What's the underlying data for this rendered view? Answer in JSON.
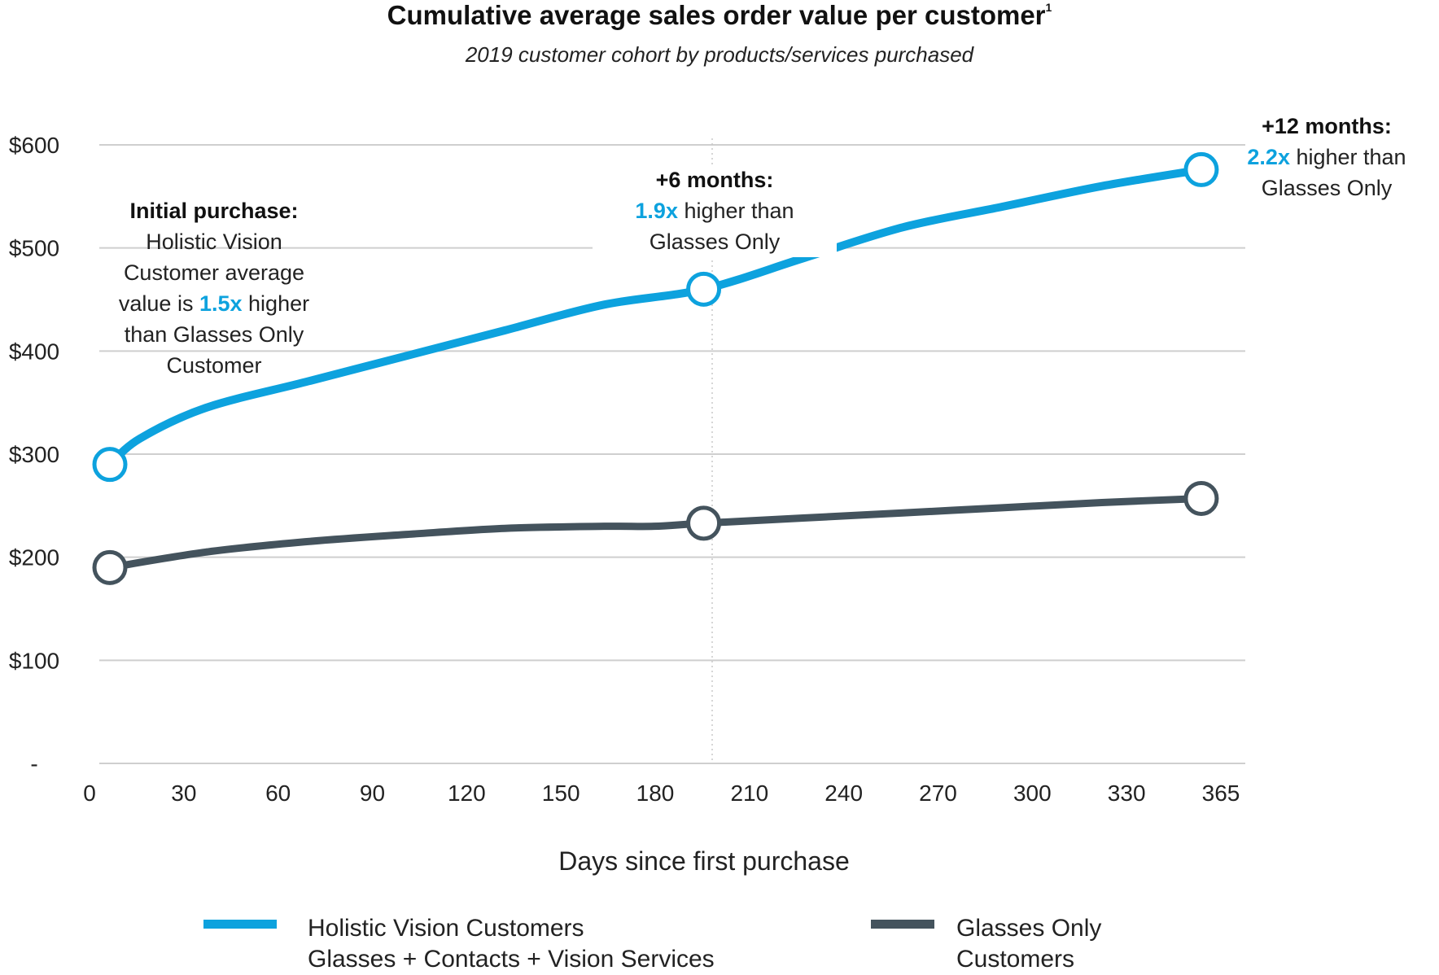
{
  "chart_data": {
    "type": "line",
    "title": "Cumulative average sales order value per customer",
    "title_footnote": "1",
    "subtitle": "2019 customer cohort by products/services purchased",
    "xlabel": "Days since first purchase",
    "ylabel": "",
    "x_ticks": [
      "0",
      "30",
      "60",
      "90",
      "120",
      "150",
      "180",
      "210",
      "240",
      "270",
      "300",
      "330",
      "365"
    ],
    "y_ticks": [
      "-",
      "$100",
      "$200",
      "$300",
      "$400",
      "$500",
      "$600"
    ],
    "ylim": [
      0,
      600
    ],
    "grid": "horizontal",
    "legend_position": "bottom",
    "series": [
      {
        "name": "Holistic Vision Customers",
        "name_line2": "Glasses + Contacts + Vision Services",
        "color": "#0da2de",
        "points": [
          [
            1,
            290
          ],
          [
            10,
            315
          ],
          [
            30,
            345
          ],
          [
            60,
            370
          ],
          [
            90,
            395
          ],
          [
            120,
            420
          ],
          [
            150,
            445
          ],
          [
            180,
            460
          ],
          [
            210,
            490
          ],
          [
            240,
            520
          ],
          [
            270,
            540
          ],
          [
            300,
            560
          ],
          [
            330,
            576
          ]
        ],
        "markers": [
          [
            1,
            290
          ],
          [
            180,
            460
          ],
          [
            330,
            576
          ]
        ]
      },
      {
        "name": "Glasses Only",
        "name_line2": "Customers",
        "color": "#44535d",
        "points": [
          [
            1,
            190
          ],
          [
            30,
            205
          ],
          [
            60,
            215
          ],
          [
            90,
            222
          ],
          [
            120,
            228
          ],
          [
            150,
            230
          ],
          [
            165,
            230
          ],
          [
            180,
            233
          ],
          [
            210,
            238
          ],
          [
            240,
            243
          ],
          [
            270,
            248
          ],
          [
            300,
            253
          ],
          [
            330,
            257
          ]
        ],
        "markers": [
          [
            1,
            190
          ],
          [
            180,
            233
          ],
          [
            330,
            257
          ]
        ]
      }
    ],
    "annotations": [
      {
        "heading": "Initial purchase:",
        "lines": [
          "Holistic Vision",
          "Customer average"
        ],
        "pre": "value is ",
        "multiplier": "1.5x",
        "post": " higher",
        "tail": [
          "than Glasses Only",
          "Customer"
        ]
      },
      {
        "heading": "+6 months:",
        "multiplier": "1.9x",
        "post": " higher than",
        "tail": [
          "Glasses Only"
        ]
      },
      {
        "heading": "+12 months:",
        "multiplier": "2.2x",
        "post": " higher than",
        "tail": [
          "Glasses Only"
        ]
      }
    ]
  }
}
